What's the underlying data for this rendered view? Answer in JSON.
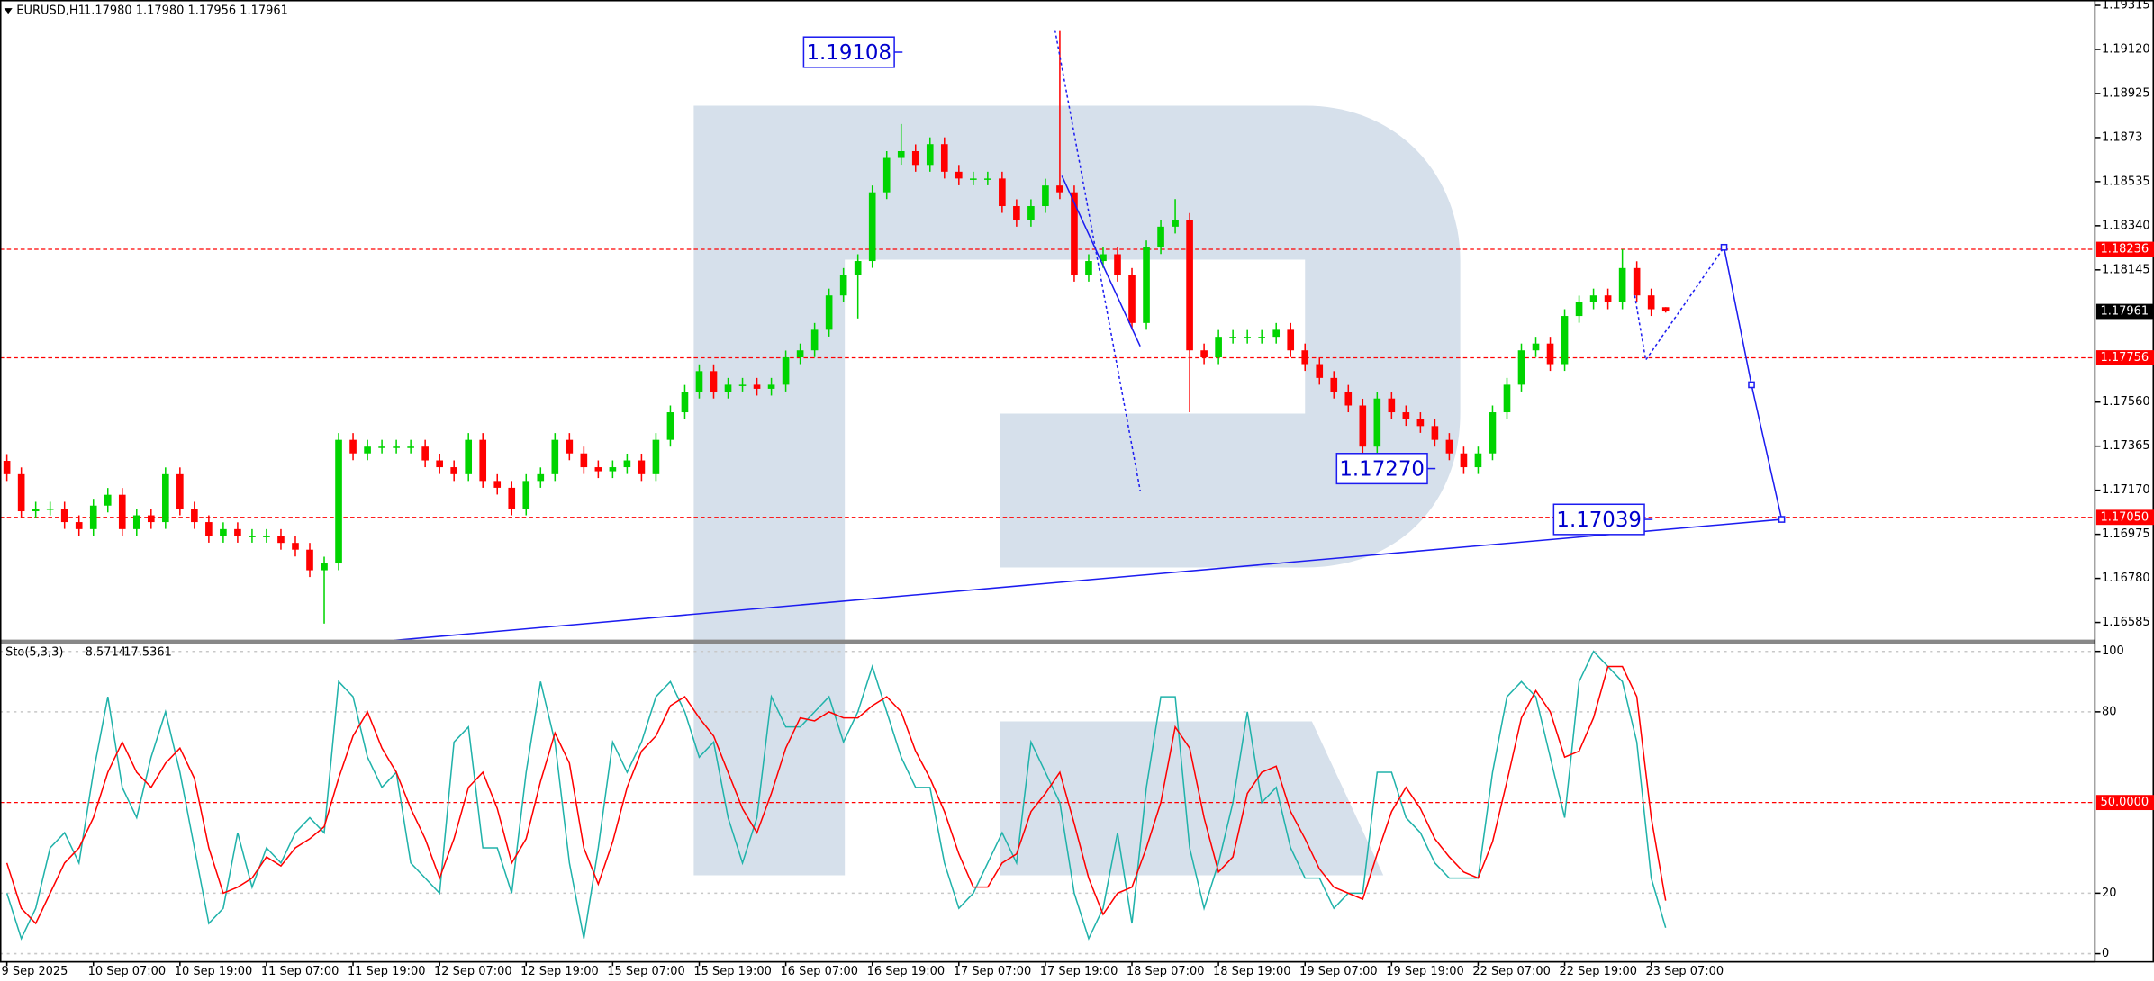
{
  "chart_data": [
    {
      "type": "candlestick",
      "title": "EURUSD,H1",
      "ohlc_text": "1.17980 1.17980 1.17956 1.17961",
      "up_color": "#00d400",
      "down_color": "#ff0000",
      "open": [
        1.173,
        1.17241,
        1.17077,
        1.17089,
        1.17089,
        1.17029,
        1.16998,
        1.17102,
        1.1715,
        1.16998,
        1.17059,
        1.17029,
        1.17241,
        1.17089,
        1.17029,
        1.16968,
        1.16998,
        1.16968,
        1.16968,
        1.16968,
        1.16937,
        1.16907,
        1.16816,
        1.16846,
        1.17393,
        1.17333,
        1.17363,
        1.17363,
        1.17363,
        1.17363,
        1.17302,
        1.17272,
        1.17241,
        1.17393,
        1.17211,
        1.17181,
        1.17089,
        1.17211,
        1.17241,
        1.17393,
        1.17333,
        1.17272,
        1.17254,
        1.17272,
        1.17302,
        1.17241,
        1.17393,
        1.17515,
        1.17606,
        1.17697,
        1.17606,
        1.17637,
        1.17637,
        1.17619,
        1.17637,
        1.17758,
        1.17789,
        1.1788,
        1.18032,
        1.18123,
        1.18184,
        1.18488,
        1.1864,
        1.1867,
        1.18609,
        1.18701,
        1.18579,
        1.18549,
        1.18549,
        1.18549,
        1.18427,
        1.18366,
        1.18427,
        1.18518,
        1.18488,
        1.18123,
        1.18184,
        1.18214,
        1.18123,
        1.1791,
        1.18245,
        1.18336,
        1.18366,
        1.17789,
        1.17758,
        1.17849,
        1.17849,
        1.17849,
        1.17849,
        1.1788,
        1.17789,
        1.17728,
        1.17667,
        1.17606,
        1.17545,
        1.17363,
        1.17576,
        1.17515,
        1.17485,
        1.17454,
        1.17393,
        1.17333,
        1.17272,
        1.17333,
        1.17515,
        1.17637,
        1.17789,
        1.17819,
        1.17728,
        1.17941,
        1.18001,
        1.18032,
        1.18001,
        1.18153,
        1.18032,
        1.1798
      ],
      "high": [
        1.1733,
        1.17271,
        1.17119,
        1.17119,
        1.17119,
        1.17059,
        1.17132,
        1.1718,
        1.1718,
        1.17089,
        1.17089,
        1.17271,
        1.17271,
        1.17119,
        1.17059,
        1.17028,
        1.17028,
        1.16998,
        1.16998,
        1.16998,
        1.16967,
        1.16937,
        1.16876,
        1.17423,
        1.17423,
        1.17393,
        1.17393,
        1.17393,
        1.17393,
        1.17393,
        1.17332,
        1.17302,
        1.17423,
        1.17423,
        1.17241,
        1.17211,
        1.17241,
        1.17271,
        1.17423,
        1.17423,
        1.17363,
        1.17302,
        1.17302,
        1.17332,
        1.17332,
        1.17423,
        1.17545,
        1.17636,
        1.17727,
        1.17727,
        1.17667,
        1.17667,
        1.17667,
        1.17667,
        1.17788,
        1.17819,
        1.1791,
        1.18062,
        1.18153,
        1.18214,
        1.18518,
        1.1867,
        1.1879,
        1.187,
        1.18731,
        1.18731,
        1.18609,
        1.18579,
        1.18579,
        1.18579,
        1.18457,
        1.18457,
        1.18548,
        1.19205,
        1.18518,
        1.18214,
        1.18244,
        1.18244,
        1.18153,
        1.18275,
        1.18366,
        1.18458,
        1.18396,
        1.17819,
        1.17879,
        1.17879,
        1.17879,
        1.17879,
        1.1791,
        1.1791,
        1.17819,
        1.17758,
        1.17697,
        1.17636,
        1.17575,
        1.17606,
        1.17606,
        1.17545,
        1.17515,
        1.17484,
        1.17423,
        1.17363,
        1.17363,
        1.17545,
        1.17667,
        1.17819,
        1.17849,
        1.17849,
        1.17971,
        1.18031,
        1.18062,
        1.18062,
        1.18236,
        1.18183,
        1.18062,
        1.1798
      ],
      "low": [
        1.17211,
        1.17047,
        1.17047,
        1.17059,
        1.16999,
        1.16968,
        1.16968,
        1.17072,
        1.16968,
        1.16968,
        1.16999,
        1.16999,
        1.17059,
        1.16999,
        1.16938,
        1.16938,
        1.16938,
        1.16938,
        1.16938,
        1.16907,
        1.16877,
        1.16786,
        1.1658,
        1.16816,
        1.17303,
        1.17303,
        1.17333,
        1.17333,
        1.17333,
        1.17272,
        1.17242,
        1.17211,
        1.17211,
        1.17181,
        1.17151,
        1.17059,
        1.17059,
        1.17181,
        1.17211,
        1.17303,
        1.17242,
        1.17224,
        1.17224,
        1.17242,
        1.17211,
        1.17211,
        1.17363,
        1.17485,
        1.17576,
        1.17576,
        1.17576,
        1.17607,
        1.17589,
        1.17589,
        1.17607,
        1.17728,
        1.17759,
        1.1785,
        1.18002,
        1.1793,
        1.18154,
        1.18458,
        1.1861,
        1.18579,
        1.18579,
        1.18549,
        1.18519,
        1.18519,
        1.18519,
        1.18397,
        1.18336,
        1.18336,
        1.18397,
        1.18458,
        1.18093,
        1.18093,
        1.18154,
        1.18093,
        1.1788,
        1.1788,
        1.18215,
        1.18306,
        1.17515,
        1.17728,
        1.17728,
        1.17819,
        1.17819,
        1.17819,
        1.17819,
        1.17759,
        1.17698,
        1.17637,
        1.17576,
        1.17515,
        1.17333,
        1.17333,
        1.17485,
        1.17455,
        1.17424,
        1.17363,
        1.17303,
        1.17242,
        1.17242,
        1.17303,
        1.17485,
        1.17607,
        1.17759,
        1.17698,
        1.17698,
        1.17911,
        1.17971,
        1.17971,
        1.17971,
        1.18002,
        1.17941,
        1.17956
      ],
      "close": [
        1.17241,
        1.17077,
        1.17089,
        1.17089,
        1.17029,
        1.16998,
        1.17102,
        1.1715,
        1.16998,
        1.17059,
        1.17029,
        1.17241,
        1.17089,
        1.17029,
        1.16968,
        1.16998,
        1.16968,
        1.16968,
        1.16968,
        1.16937,
        1.16907,
        1.16816,
        1.16846,
        1.17393,
        1.17333,
        1.17363,
        1.17363,
        1.17363,
        1.17363,
        1.17302,
        1.17272,
        1.17241,
        1.17393,
        1.17211,
        1.17181,
        1.17089,
        1.17211,
        1.17241,
        1.17393,
        1.17333,
        1.17272,
        1.17254,
        1.17272,
        1.17302,
        1.17241,
        1.17393,
        1.17515,
        1.17606,
        1.17697,
        1.17606,
        1.17637,
        1.17637,
        1.17619,
        1.17637,
        1.17758,
        1.17789,
        1.1788,
        1.18032,
        1.18123,
        1.18184,
        1.18488,
        1.1864,
        1.1867,
        1.18609,
        1.18701,
        1.18579,
        1.18549,
        1.18549,
        1.18549,
        1.18427,
        1.18366,
        1.18427,
        1.18518,
        1.18488,
        1.18123,
        1.18184,
        1.18214,
        1.18123,
        1.1791,
        1.18245,
        1.18336,
        1.18366,
        1.17789,
        1.17758,
        1.17849,
        1.17849,
        1.17849,
        1.17849,
        1.1788,
        1.17789,
        1.17728,
        1.17667,
        1.17606,
        1.17545,
        1.17363,
        1.17576,
        1.17515,
        1.17485,
        1.17454,
        1.17393,
        1.17333,
        1.17272,
        1.17333,
        1.17515,
        1.17637,
        1.17789,
        1.17819,
        1.17728,
        1.17941,
        1.18001,
        1.18032,
        1.18001,
        1.18153,
        1.18032,
        1.17971,
        1.17961
      ],
      "ylim": [
        1.16506,
        1.19339
      ],
      "yticks": [
        1.19315,
        {
          "value": 1.1912,
          "label": "1.19120"
        },
        1.18925,
        1.1873,
        1.18535,
        {
          "value": 1.1834,
          "label": "1.18340"
        },
        1.18145,
        {
          "value": 1.1756,
          "label": "1.17560"
        },
        1.17365,
        {
          "value": 1.1717,
          "label": "1.17170"
        },
        1.16975,
        {
          "value": 1.1678,
          "label": "1.16780"
        },
        1.16585
      ],
      "levels": [
        1.18236,
        1.17756,
        {
          "value": 1.1705,
          "label": "1.17050"
        }
      ],
      "level_color": "#ff0000",
      "last_price": 1.17961,
      "annotations": [
        "1.19108",
        "1.17270",
        "1.17039"
      ]
    },
    {
      "type": "line",
      "title": "Sto(5,3,3)",
      "categories": [
        "9 Sep 2025",
        null,
        null,
        null,
        null,
        null,
        "10 Sep 07:00",
        null,
        null,
        null,
        null,
        null,
        "10 Sep 19:00",
        null,
        null,
        null,
        null,
        null,
        "11 Sep 07:00",
        null,
        null,
        null,
        null,
        null,
        "11 Sep 19:00",
        null,
        null,
        null,
        null,
        null,
        "12 Sep 07:00",
        null,
        null,
        null,
        null,
        null,
        "12 Sep 19:00",
        null,
        null,
        null,
        null,
        null,
        "15 Sep 07:00",
        null,
        null,
        null,
        null,
        null,
        "15 Sep 19:00",
        null,
        null,
        null,
        null,
        null,
        "16 Sep 07:00",
        null,
        null,
        null,
        null,
        null,
        "16 Sep 19:00",
        null,
        null,
        null,
        null,
        null,
        "17 Sep 07:00",
        null,
        null,
        null,
        null,
        null,
        "17 Sep 19:00",
        null,
        null,
        null,
        null,
        null,
        "18 Sep 07:00",
        null,
        null,
        null,
        null,
        null,
        "18 Sep 19:00",
        null,
        null,
        null,
        null,
        null,
        "19 Sep 07:00",
        null,
        null,
        null,
        null,
        null,
        "19 Sep 19:00",
        null,
        null,
        null,
        null,
        null,
        "22 Sep 07:00",
        null,
        null,
        null,
        null,
        null,
        "22 Sep 19:00",
        null,
        null,
        null,
        null,
        null,
        "23 Sep 07:00",
        null
      ],
      "series": [
        {
          "color": "#20b2aa",
          "values": [
            20,
            5,
            15,
            35,
            40,
            30,
            60,
            85,
            55,
            45,
            65,
            80,
            60,
            35,
            10,
            15,
            40,
            22,
            35,
            30,
            40,
            45,
            40,
            90,
            85,
            65,
            55,
            60,
            30,
            25,
            20,
            70,
            75,
            35,
            35,
            20,
            60,
            90,
            70,
            30,
            5,
            35,
            70,
            60,
            70,
            85,
            90,
            80,
            65,
            70,
            45,
            30,
            45,
            85,
            75,
            75,
            80,
            85,
            70,
            80,
            95,
            80,
            65,
            55,
            55,
            30,
            15,
            20,
            30,
            40,
            30,
            70,
            60,
            50,
            20,
            5,
            15,
            40,
            10,
            55,
            85,
            85,
            35,
            15,
            30,
            50,
            80,
            50,
            55,
            35,
            25,
            25,
            15,
            20,
            20,
            60,
            60,
            45,
            40,
            30,
            25,
            25,
            25,
            60,
            85,
            90,
            85,
            65,
            45,
            90,
            100,
            95,
            90,
            70,
            25,
            8.5714
          ]
        },
        {
          "color": "#ff0000",
          "values": [
            30,
            15,
            10,
            20,
            30,
            35,
            45,
            60,
            70,
            60,
            55,
            63,
            68,
            58,
            35,
            20,
            22,
            25,
            32,
            29,
            35,
            38,
            42,
            58,
            72,
            80,
            68,
            60,
            48,
            38,
            25,
            38,
            55,
            60,
            48,
            30,
            38,
            57,
            73,
            63,
            35,
            23,
            37,
            55,
            67,
            72,
            82,
            85,
            78,
            72,
            60,
            48,
            40,
            53,
            68,
            78,
            77,
            80,
            78,
            78,
            82,
            85,
            80,
            67,
            58,
            47,
            33,
            22,
            22,
            30,
            33,
            47,
            53,
            60,
            43,
            25,
            13,
            20,
            22,
            35,
            50,
            75,
            68,
            45,
            27,
            32,
            53,
            60,
            62,
            47,
            38,
            28,
            22,
            20,
            18,
            33,
            47,
            55,
            48,
            38,
            32,
            27,
            25,
            37,
            57,
            78,
            87,
            80,
            65,
            67,
            78,
            95,
            95,
            85,
            45,
            17.5361
          ]
        }
      ],
      "ylim": [
        -2.7,
        102.3
      ],
      "yticks": [
        0,
        20,
        80,
        100
      ],
      "levels": [
        {
          "value": 50,
          "label": "50.0000"
        }
      ],
      "level_color": "#ff0000"
    }
  ]
}
